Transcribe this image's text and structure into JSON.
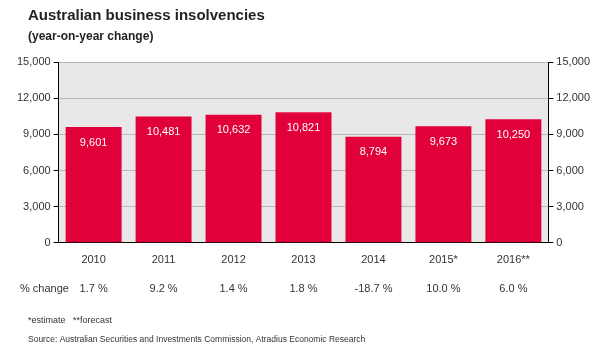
{
  "chart_data": {
    "type": "bar",
    "title": "Australian business insolvencies",
    "subtitle": "(year-on-year change)",
    "categories": [
      "2010",
      "2011",
      "2012",
      "2013",
      "2014",
      "2015*",
      "2016**"
    ],
    "values": [
      9601,
      10481,
      10632,
      10821,
      8794,
      9673,
      10250
    ],
    "value_labels": [
      "9,601",
      "10,481",
      "10,632",
      "10,821",
      "8,794",
      "9,673",
      "10,250"
    ],
    "data_labels": true,
    "color": "#e2003a",
    "ylim": [
      0,
      15000
    ],
    "yticks": [
      0,
      {
        "value": 3000,
        "label": "3,000"
      },
      {
        "value": 6000,
        "label": "6,000"
      },
      {
        "value": 9000,
        "label": "9,000"
      },
      {
        "value": 12000,
        "label": "12,000"
      },
      {
        "value": 15000,
        "label": "15,000"
      }
    ],
    "y2lim": [
      0,
      15000
    ],
    "y2ticks": [
      0,
      {
        "value": 3000,
        "label": "3,000"
      },
      {
        "value": 6000,
        "label": "6,000"
      },
      {
        "value": 9000,
        "label": "9,000"
      },
      {
        "value": 12000,
        "label": "12,000"
      },
      {
        "value": 15000,
        "label": "15,000"
      }
    ],
    "grid": true,
    "pct_change": {
      "label": "% change",
      "values": [
        1.7,
        9.2,
        1.4,
        1.8,
        -18.7,
        10.0,
        6.0
      ],
      "value_labels": [
        "1.7 %",
        "9.2 %",
        "1.4 %",
        "1.8 %",
        "-18.7 %",
        "10.0 %",
        "6.0 %"
      ]
    },
    "notes": [
      "*estimate",
      "**forecast"
    ],
    "source": "Source: Australian Securities and Investments Commission, Atradius Economic Research"
  }
}
